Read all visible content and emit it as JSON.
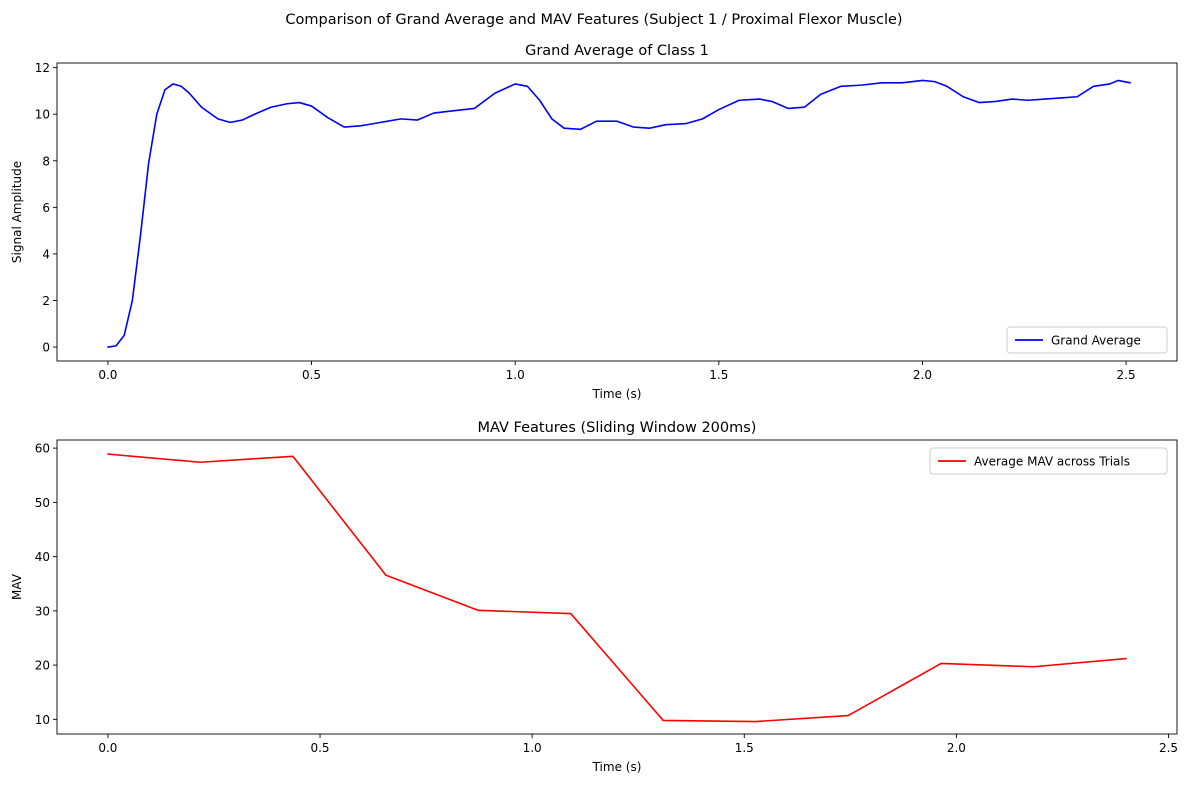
{
  "figure": {
    "suptitle": "Comparison of Grand Average and MAV Features (Subject 1 / Proximal Flexor Muscle)"
  },
  "chart_data": [
    {
      "type": "line",
      "title": "Grand Average of Class 1",
      "xlabel": "Time (s)",
      "ylabel": "Signal Amplitude",
      "xlim": [
        -0.125,
        2.625
      ],
      "ylim": [
        -0.6,
        12.2
      ],
      "xticks": [
        0.0,
        0.5,
        1.0,
        1.5,
        2.0,
        2.5
      ],
      "xtick_labels": [
        "0.0",
        "0.5",
        "1.0",
        "1.5",
        "2.0",
        "2.5"
      ],
      "yticks": [
        0,
        2,
        4,
        6,
        8,
        10,
        12
      ],
      "ytick_labels": [
        "0",
        "2",
        "4",
        "6",
        "8",
        "10",
        "12"
      ],
      "grid": false,
      "legend_position": "lower-right",
      "series": [
        {
          "name": "Grand Average",
          "color": "#0000ff",
          "x": [
            0.0,
            0.02,
            0.04,
            0.06,
            0.08,
            0.1,
            0.12,
            0.14,
            0.16,
            0.18,
            0.2,
            0.23,
            0.27,
            0.3,
            0.33,
            0.36,
            0.4,
            0.44,
            0.47,
            0.5,
            0.54,
            0.58,
            0.62,
            0.67,
            0.72,
            0.76,
            0.8,
            0.85,
            0.9,
            0.95,
            1.0,
            1.03,
            1.06,
            1.09,
            1.12,
            1.16,
            1.2,
            1.25,
            1.29,
            1.33,
            1.37,
            1.42,
            1.46,
            1.5,
            1.55,
            1.6,
            1.63,
            1.67,
            1.71,
            1.75,
            1.8,
            1.85,
            1.9,
            1.95,
            2.0,
            2.03,
            2.06,
            2.1,
            2.14,
            2.18,
            2.22,
            2.26,
            2.3,
            2.34,
            2.38,
            2.42,
            2.46,
            2.48,
            2.51
          ],
          "values": [
            0.0,
            0.05,
            0.5,
            2.0,
            4.8,
            7.9,
            10.0,
            11.05,
            11.3,
            11.2,
            10.9,
            10.3,
            9.8,
            9.65,
            9.75,
            10.0,
            10.3,
            10.45,
            10.5,
            10.35,
            9.85,
            9.45,
            9.5,
            9.65,
            9.8,
            9.75,
            10.05,
            10.15,
            10.25,
            10.9,
            11.3,
            11.2,
            10.6,
            9.8,
            9.4,
            9.35,
            9.7,
            9.7,
            9.45,
            9.4,
            9.55,
            9.6,
            9.8,
            10.2,
            10.6,
            10.65,
            10.55,
            10.25,
            10.3,
            10.85,
            11.2,
            11.25,
            11.35,
            11.35,
            11.45,
            11.4,
            11.2,
            10.75,
            10.5,
            10.55,
            10.65,
            10.6,
            10.65,
            10.7,
            10.75,
            11.2,
            11.3,
            11.45,
            11.35
          ]
        }
      ]
    },
    {
      "type": "line",
      "title": "MAV Features (Sliding Window 200ms)",
      "xlabel": "Time (s)",
      "ylabel": "MAV",
      "xlim": [
        -0.12,
        2.52
      ],
      "ylim": [
        7.3,
        61.5
      ],
      "xticks": [
        0.0,
        0.5,
        1.0,
        1.5,
        2.0,
        2.5
      ],
      "xtick_labels": [
        "0.0",
        "0.5",
        "1.0",
        "1.5",
        "2.0",
        "2.5"
      ],
      "yticks": [
        10,
        20,
        30,
        40,
        50,
        60
      ],
      "ytick_labels": [
        "10",
        "20",
        "30",
        "40",
        "50",
        "60"
      ],
      "grid": false,
      "legend_position": "upper-right",
      "series": [
        {
          "name": "Average MAV across Trials",
          "color": "#ff0000",
          "x": [
            0.0,
            0.218,
            0.436,
            0.655,
            0.873,
            1.091,
            1.309,
            1.527,
            1.745,
            1.964,
            2.182,
            2.4
          ],
          "values": [
            58.9,
            57.4,
            58.5,
            36.6,
            30.1,
            29.5,
            9.8,
            9.6,
            10.7,
            20.3,
            19.7,
            21.2
          ]
        }
      ]
    }
  ]
}
